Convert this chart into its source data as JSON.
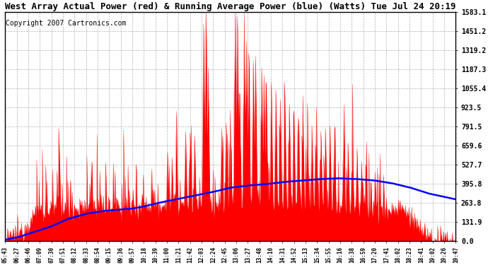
{
  "title": "West Array Actual Power (red) & Running Average Power (blue) (Watts) Tue Jul 24 20:19",
  "copyright": "Copyright 2007 Cartronics.com",
  "title_fontsize": 9,
  "copyright_fontsize": 7,
  "background_color": "#ffffff",
  "plot_bg_color": "#ffffff",
  "grid_color": "#aaaaaa",
  "actual_color": "#ff0000",
  "avg_color": "#0000ff",
  "ymin": 0.0,
  "ymax": 1583.1,
  "ytick_values": [
    0.0,
    131.9,
    263.8,
    395.8,
    527.7,
    659.6,
    791.5,
    923.5,
    1055.4,
    1187.3,
    1319.2,
    1451.2,
    1583.1
  ],
  "xtick_labels": [
    "05:43",
    "06:27",
    "06:46",
    "07:09",
    "07:30",
    "07:51",
    "08:12",
    "08:33",
    "08:54",
    "09:15",
    "09:36",
    "09:57",
    "10:18",
    "10:39",
    "11:00",
    "11:21",
    "11:42",
    "12:03",
    "12:24",
    "12:45",
    "13:06",
    "13:27",
    "13:48",
    "14:10",
    "14:31",
    "14:52",
    "15:13",
    "15:34",
    "15:55",
    "16:16",
    "16:38",
    "16:59",
    "17:20",
    "17:41",
    "18:02",
    "18:23",
    "18:41",
    "19:02",
    "19:26",
    "19:47"
  ],
  "num_points": 800,
  "avg_line_t": [
    0.0,
    0.03,
    0.06,
    0.1,
    0.14,
    0.18,
    0.22,
    0.26,
    0.28,
    0.3,
    0.34,
    0.38,
    0.42,
    0.46,
    0.5,
    0.54,
    0.58,
    0.62,
    0.66,
    0.7,
    0.74,
    0.78,
    0.82,
    0.86,
    0.9,
    0.94,
    1.0
  ],
  "avg_line_v": [
    10,
    30,
    60,
    100,
    155,
    190,
    210,
    220,
    225,
    235,
    265,
    290,
    315,
    340,
    370,
    385,
    395,
    410,
    420,
    430,
    435,
    430,
    420,
    400,
    370,
    330,
    290
  ]
}
